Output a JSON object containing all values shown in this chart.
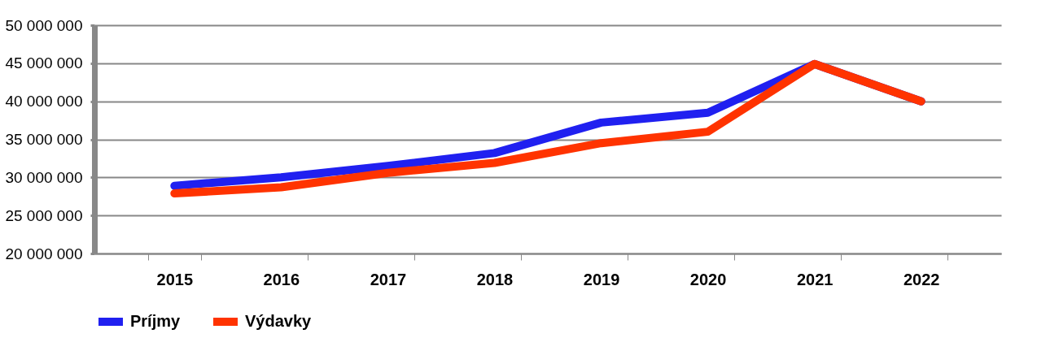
{
  "chart_data": {
    "type": "line",
    "categories": [
      "2015",
      "2016",
      "2017",
      "2018",
      "2019",
      "2020",
      "2021",
      "2022"
    ],
    "series": [
      {
        "name": "Príjmy",
        "color": "#2020f0",
        "values": [
          28900000,
          30000000,
          31500000,
          33200000,
          37200000,
          38500000,
          44900000,
          40000000
        ]
      },
      {
        "name": "Výdavky",
        "color": "#ff3300",
        "values": [
          27900000,
          28700000,
          30600000,
          31900000,
          34500000,
          36000000,
          44900000,
          40000000
        ]
      }
    ],
    "ylim": [
      20000000,
      50000000
    ],
    "yticks": [
      {
        "value": 20000000,
        "label": "20 000 000"
      },
      {
        "value": 25000000,
        "label": "25 000 000"
      },
      {
        "value": 30000000,
        "label": "30 000 000"
      },
      {
        "value": 35000000,
        "label": "35 000 000"
      },
      {
        "value": 40000000,
        "label": "40 000 000"
      },
      {
        "value": 45000000,
        "label": "45 000 000"
      },
      {
        "value": 50000000,
        "label": "50 000 000"
      }
    ],
    "grid": "y",
    "legend": "bottom",
    "marker": "none",
    "line_style": "solid"
  }
}
